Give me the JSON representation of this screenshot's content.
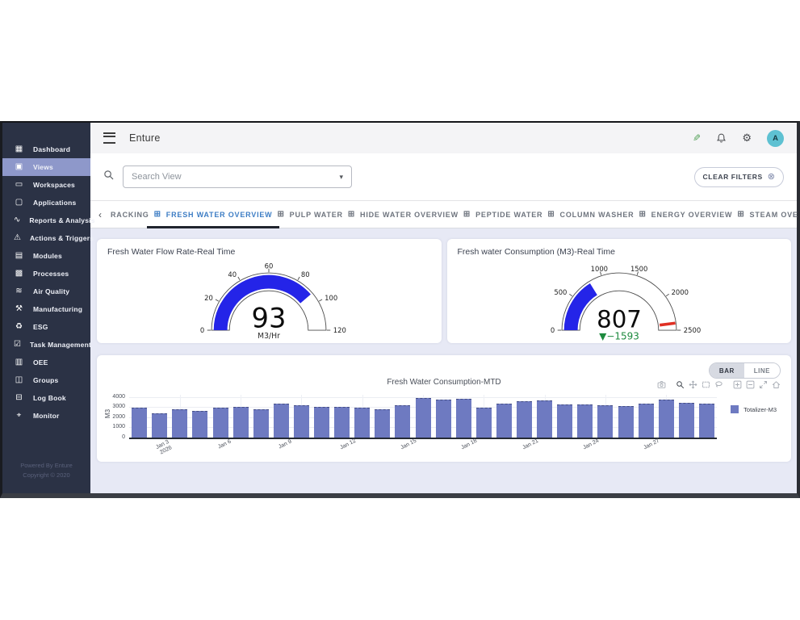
{
  "topbar": {
    "title": "Enture",
    "avatar_text": "A",
    "icons": [
      "menu-icon",
      "edit-pencil-icon",
      "notifications-bell-icon",
      "settings-gear-icon",
      "avatar"
    ]
  },
  "sidebar": {
    "items": [
      {
        "label": "Dashboard",
        "icon": "dashboard-icon",
        "glyph": "▦",
        "active": false
      },
      {
        "label": "Views",
        "icon": "views-icon",
        "glyph": "▣",
        "active": true
      },
      {
        "label": "Workspaces",
        "icon": "workspaces-icon",
        "glyph": "▭",
        "active": false
      },
      {
        "label": "Applications",
        "icon": "applications-icon",
        "glyph": "▢",
        "active": false
      },
      {
        "label": "Reports & Analysis",
        "icon": "reports-analysis-icon",
        "glyph": "∿",
        "active": false
      },
      {
        "label": "Actions & Triggers",
        "icon": "actions-triggers-icon",
        "glyph": "⚠",
        "active": false
      },
      {
        "label": "Modules",
        "icon": "modules-icon",
        "glyph": "▤",
        "active": false
      },
      {
        "label": "Processes",
        "icon": "processes-icon",
        "glyph": "▩",
        "active": false
      },
      {
        "label": "Air Quality",
        "icon": "air-quality-icon",
        "glyph": "≋",
        "active": false
      },
      {
        "label": "Manufacturing",
        "icon": "manufacturing-icon",
        "glyph": "⚒",
        "active": false
      },
      {
        "label": "ESG",
        "icon": "esg-icon",
        "glyph": "♻",
        "active": false
      },
      {
        "label": "Task Management",
        "icon": "task-management-icon",
        "glyph": "☑",
        "active": false
      },
      {
        "label": "OEE",
        "icon": "oee-icon",
        "glyph": "▥",
        "active": false
      },
      {
        "label": "Groups",
        "icon": "groups-icon",
        "glyph": "◫",
        "active": false
      },
      {
        "label": "Log Book",
        "icon": "log-book-icon",
        "glyph": "⊟",
        "active": false
      },
      {
        "label": "Monitor",
        "icon": "monitor-icon",
        "glyph": "⌖",
        "active": false
      }
    ],
    "footer_line1": "Powered By Enture",
    "footer_line2": "Copyright © 2020"
  },
  "filters": {
    "search_placeholder": "Search View",
    "clear_filters_label": "CLEAR FILTERS"
  },
  "tabs": {
    "prev_glyph": "‹",
    "next_glyph": "›",
    "tab_icon_glyph": "⊞",
    "items": [
      {
        "label": "RACKING",
        "icon": false,
        "active": false
      },
      {
        "label": "FRESH WATER OVERVIEW",
        "icon": true,
        "active": true
      },
      {
        "label": "PULP WATER",
        "icon": true,
        "active": false
      },
      {
        "label": "HIDE WATER OVERVIEW",
        "icon": true,
        "active": false
      },
      {
        "label": "PEPTIDE WATER",
        "icon": true,
        "active": false
      },
      {
        "label": "COLUMN WASHER",
        "icon": true,
        "active": false
      },
      {
        "label": "ENERGY OVERVIEW",
        "icon": true,
        "active": false
      },
      {
        "label": "STEAM OVE",
        "icon": true,
        "active": false
      }
    ]
  },
  "gauges": [
    {
      "title": "Fresh Water Flow Rate-Real Time",
      "value": 93,
      "unit": "M3/Hr",
      "min": 0,
      "max": 120,
      "ticks": [
        0,
        20,
        40,
        60,
        80,
        100,
        120
      ],
      "delta": null,
      "threshold": null
    },
    {
      "title": "Fresh water Consumption (M3)-Real Time",
      "value": 807,
      "unit": null,
      "min": 0,
      "max": 2500,
      "ticks": [
        0,
        500,
        1000,
        1500,
        2000,
        2500
      ],
      "delta": "▼−1593",
      "threshold": 2400
    }
  ],
  "chart": {
    "bar_label": "BAR",
    "line_label": "LINE",
    "modebar": [
      "camera-icon",
      "zoom-icon",
      "pan-icon",
      "box-select-icon",
      "lasso-icon",
      "zoom-in-icon",
      "zoom-out-icon",
      "autoscale-icon",
      "reset-axes-icon"
    ],
    "modebar_active": "zoom-icon"
  },
  "chart_data": {
    "type": "bar",
    "title": "Fresh Water Consumption-MTD",
    "xlabel": "",
    "ylabel": "M3",
    "yticks": [
      0,
      1000,
      2000,
      3000,
      4000
    ],
    "ylim": [
      0,
      4000
    ],
    "grid": true,
    "legend_position": "right",
    "categories": [
      "Jan 1",
      "Jan 2",
      "Jan 3",
      "Jan 4",
      "Jan 5",
      "Jan 6",
      "Jan 7",
      "Jan 8",
      "Jan 9",
      "Jan 10",
      "Jan 11",
      "Jan 12",
      "Jan 13",
      "Jan 14",
      "Jan 15",
      "Jan 16",
      "Jan 17",
      "Jan 18",
      "Jan 19",
      "Jan 20",
      "Jan 21",
      "Jan 22",
      "Jan 23",
      "Jan 24",
      "Jan 25",
      "Jan 26",
      "Jan 27",
      "Jan 28",
      "Jan 29"
    ],
    "x_ticks": [
      {
        "index": 2,
        "label": "Jan 3\n2026"
      },
      {
        "index": 5,
        "label": "Jan 6"
      },
      {
        "index": 8,
        "label": "Jan 9"
      },
      {
        "index": 11,
        "label": "Jan 12"
      },
      {
        "index": 14,
        "label": "Jan 15"
      },
      {
        "index": 17,
        "label": "Jan 18"
      },
      {
        "index": 20,
        "label": "Jan 21"
      },
      {
        "index": 23,
        "label": "Jan 24"
      },
      {
        "index": 26,
        "label": "Jan 27"
      }
    ],
    "series": [
      {
        "name": "Totalizer-M3",
        "color": "#6e7ac1",
        "values": [
          2950,
          2350,
          2750,
          2650,
          2900,
          3050,
          2800,
          3300,
          3200,
          3000,
          3000,
          2900,
          2800,
          3200,
          3900,
          3750,
          3800,
          2950,
          3350,
          3600,
          3650,
          3250,
          3250,
          3200,
          3100,
          3300,
          3700,
          3400,
          3300
        ]
      }
    ]
  },
  "colors": {
    "gauge_arc": "#2424e8",
    "bar": "#6e7ac1",
    "delta_green": "#1d8a3e",
    "threshold_red": "#e02f23",
    "tab_active": "#3d7dc4",
    "sidebar_bg": "#2b3245",
    "sidebar_active": "#8e98ca",
    "content_bg": "#e7e9f5",
    "avatar_bg": "#5ec1d2"
  }
}
